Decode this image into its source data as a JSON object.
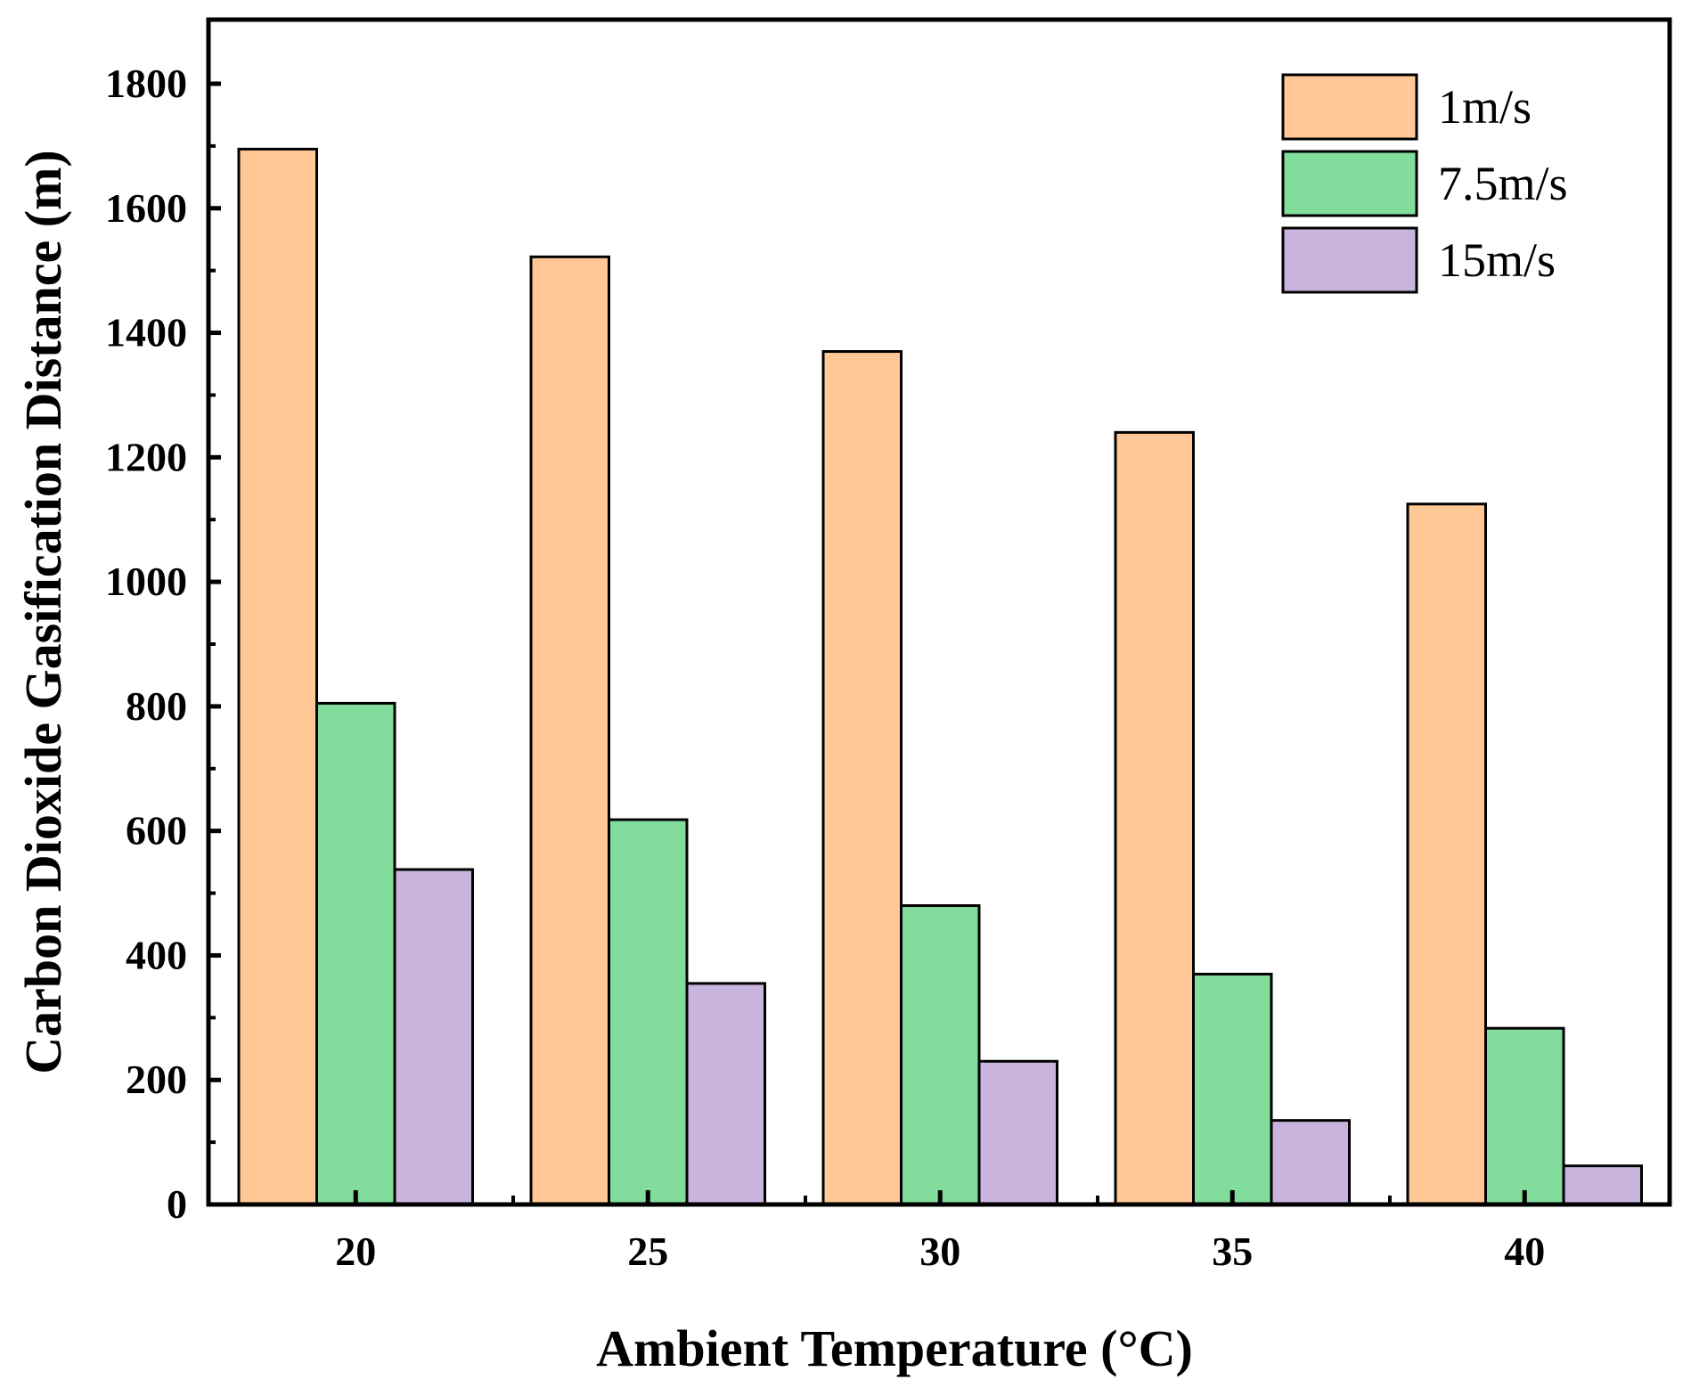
{
  "chart_data": {
    "type": "bar",
    "title": "",
    "xlabel": "Ambient Temperature (°C)",
    "ylabel": "Carbon Dioxide Gasification Distance (m)",
    "categories": [
      "20",
      "25",
      "30",
      "35",
      "40"
    ],
    "series": [
      {
        "name": "1m/s",
        "color": "#ffc896",
        "values": [
          1695,
          1522,
          1370,
          1240,
          1125
        ]
      },
      {
        "name": "7.5m/s",
        "color": "#82dc9b",
        "values": [
          805,
          618,
          480,
          370,
          283
        ]
      },
      {
        "name": "15m/s",
        "color": "#c8b4dc",
        "values": [
          538,
          355,
          230,
          135,
          62
        ]
      }
    ],
    "ylim": [
      0,
      1900
    ],
    "yticks": [
      0,
      200,
      400,
      600,
      800,
      1000,
      1200,
      1400,
      1600,
      1800
    ],
    "legend_position": "top-right",
    "grid": false
  }
}
